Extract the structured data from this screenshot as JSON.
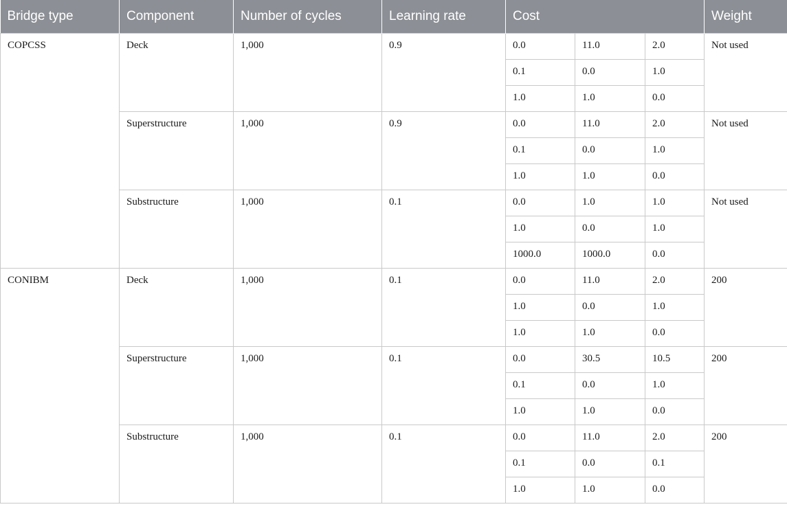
{
  "table": {
    "headers": {
      "bridge_type": "Bridge type",
      "component": "Component",
      "cycles": "Number of cycles",
      "learning_rate": "Learning rate",
      "cost": "Cost",
      "weight": "Weight"
    },
    "bridges": [
      {
        "type": "COPCSS",
        "components": [
          {
            "name": "Deck",
            "cycles": "1,000",
            "learning_rate": "0.9",
            "cost": [
              [
                "0.0",
                "11.0",
                "2.0"
              ],
              [
                "0.1",
                "0.0",
                "1.0"
              ],
              [
                "1.0",
                "1.0",
                "0.0"
              ]
            ],
            "weight": "Not used"
          },
          {
            "name": "Superstructure",
            "cycles": "1,000",
            "learning_rate": "0.9",
            "cost": [
              [
                "0.0",
                "11.0",
                "2.0"
              ],
              [
                "0.1",
                "0.0",
                "1.0"
              ],
              [
                "1.0",
                "1.0",
                "0.0"
              ]
            ],
            "weight": "Not used"
          },
          {
            "name": "Substructure",
            "cycles": "1,000",
            "learning_rate": "0.1",
            "cost": [
              [
                "0.0",
                "1.0",
                "1.0"
              ],
              [
                "1.0",
                "0.0",
                "1.0"
              ],
              [
                "1000.0",
                "1000.0",
                "0.0"
              ]
            ],
            "weight": "Not used"
          }
        ]
      },
      {
        "type": "CONIBM",
        "components": [
          {
            "name": "Deck",
            "cycles": "1,000",
            "learning_rate": "0.1",
            "cost": [
              [
                "0.0",
                "11.0",
                "2.0"
              ],
              [
                "1.0",
                "0.0",
                "1.0"
              ],
              [
                "1.0",
                "1.0",
                "0.0"
              ]
            ],
            "weight": "200"
          },
          {
            "name": "Superstructure",
            "cycles": "1,000",
            "learning_rate": "0.1",
            "cost": [
              [
                "0.0",
                "30.5",
                "10.5"
              ],
              [
                "0.1",
                "0.0",
                "1.0"
              ],
              [
                "1.0",
                "1.0",
                "0.0"
              ]
            ],
            "weight": "200"
          },
          {
            "name": "Substructure",
            "cycles": "1,000",
            "learning_rate": "0.1",
            "cost": [
              [
                "0.0",
                "11.0",
                "2.0"
              ],
              [
                "0.1",
                "0.0",
                "0.1"
              ],
              [
                "1.0",
                "1.0",
                "0.0"
              ]
            ],
            "weight": "200"
          }
        ]
      }
    ]
  }
}
